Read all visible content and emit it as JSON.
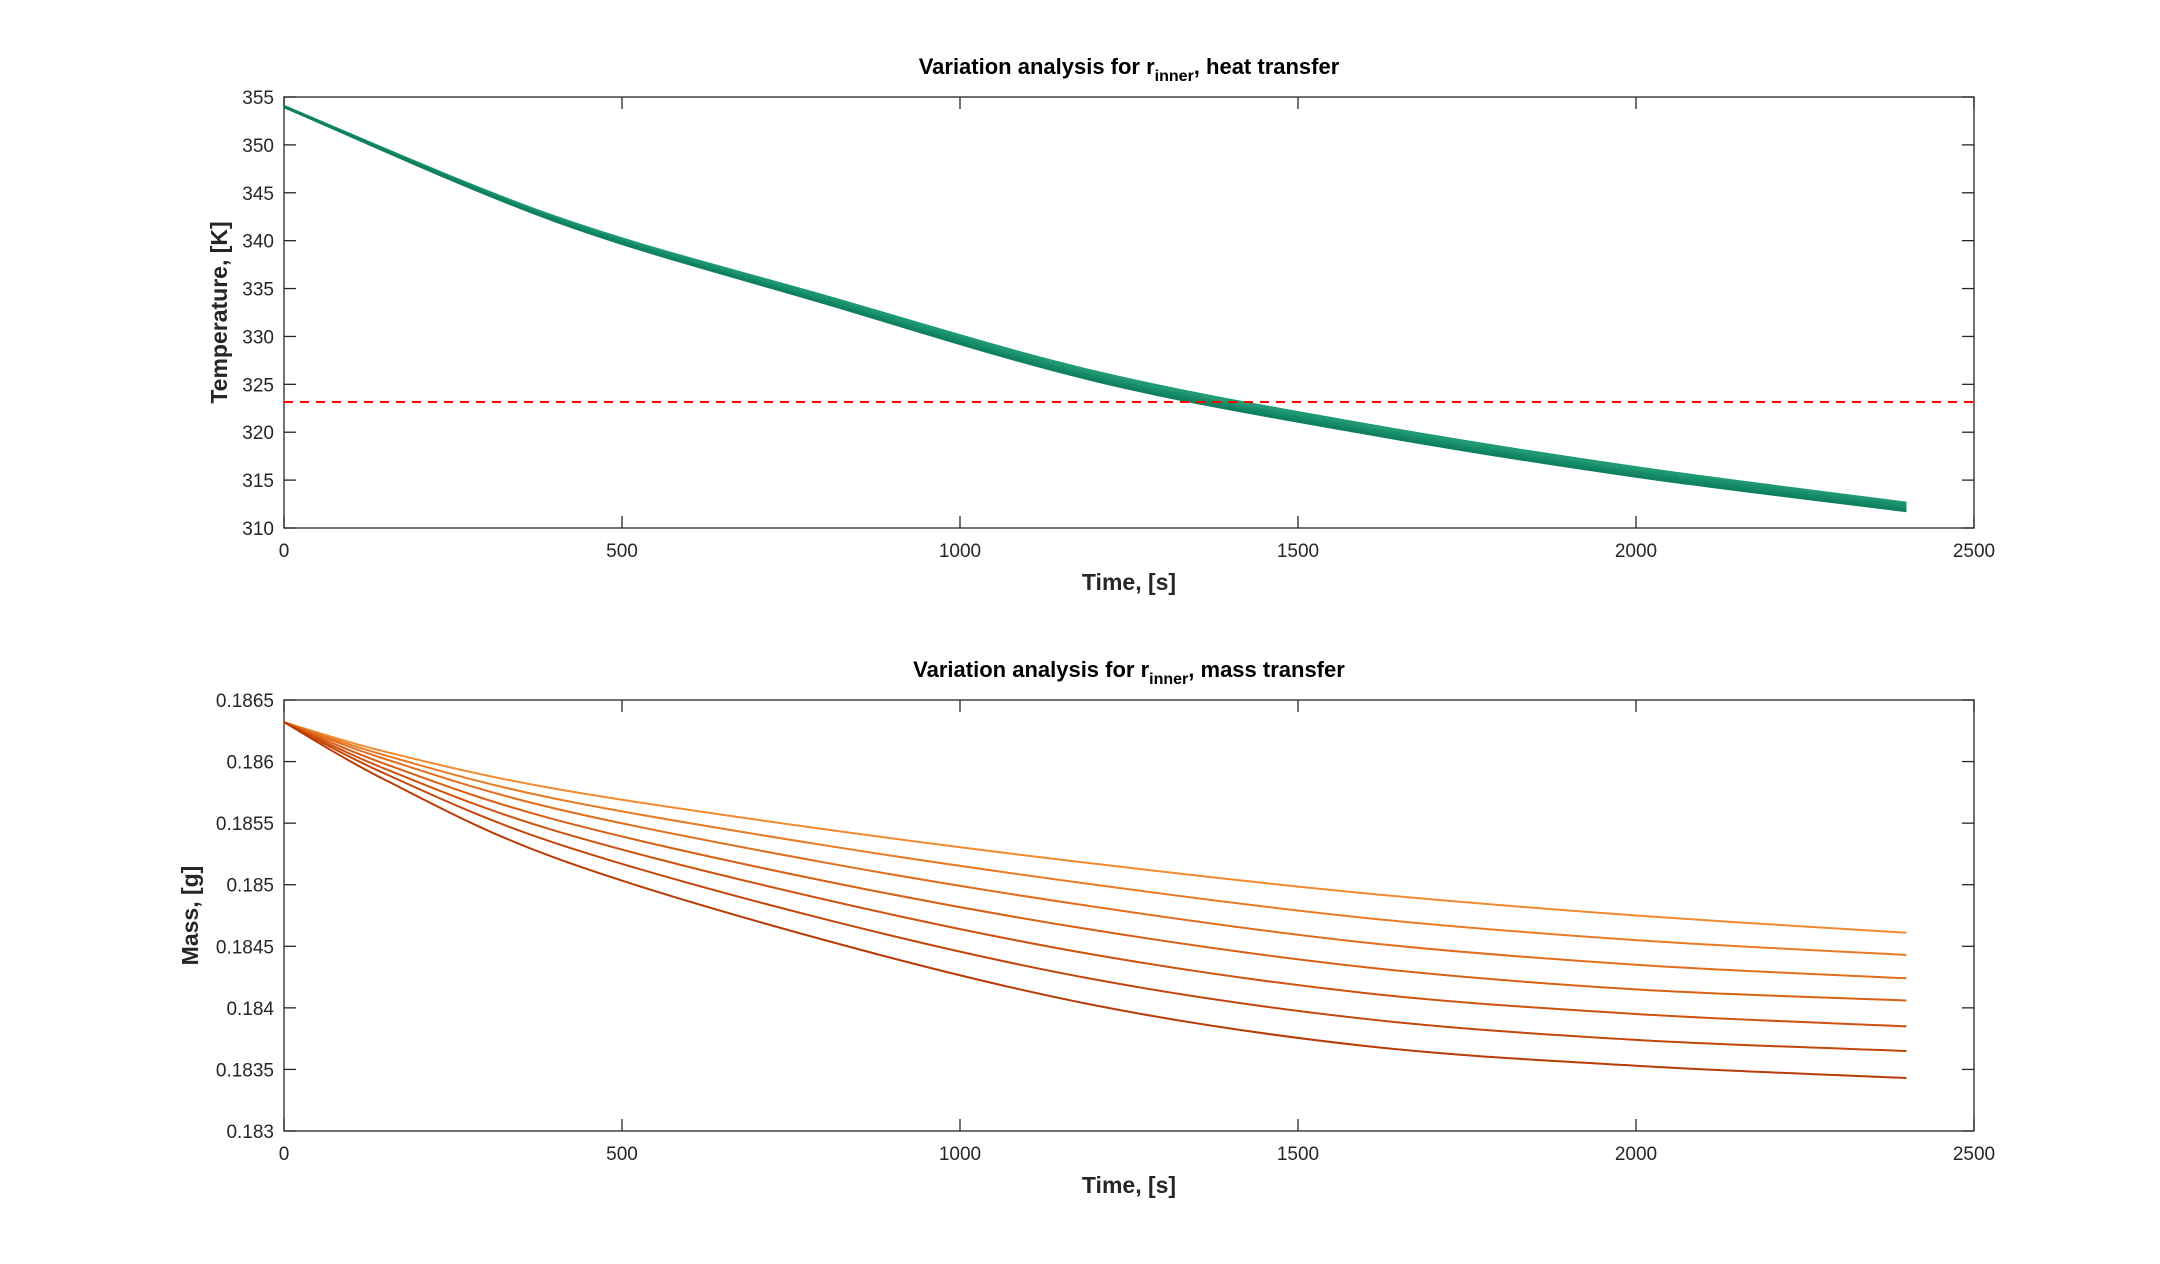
{
  "chart_data": [
    {
      "type": "line",
      "title": {
        "prefix": "Variation analysis for r",
        "subscript": "inner",
        "suffix": ", heat transfer"
      },
      "xlabel": "Time, [s]",
      "ylabel": "Temperature, [K]",
      "xlim": [
        0,
        2500
      ],
      "ylim": [
        310,
        355
      ],
      "xticks": [
        0,
        500,
        1000,
        1500,
        2000,
        2500
      ],
      "yticks": [
        310,
        315,
        320,
        325,
        330,
        335,
        340,
        345,
        350,
        355
      ],
      "xtick_labels": [
        "0",
        "500",
        "1000",
        "1500",
        "2000",
        "2500"
      ],
      "ytick_labels": [
        "310",
        "315",
        "320",
        "325",
        "330",
        "335",
        "340",
        "345",
        "350",
        "355"
      ],
      "grid": false,
      "series": [
        {
          "color": "#1f9a72",
          "x": [
            0,
            400,
            800,
            1200,
            1600,
            2000,
            2400
          ],
          "values": [
            354.0,
            342.5,
            334.2,
            326.3,
            320.8,
            316.3,
            312.6
          ]
        },
        {
          "color": "#1b9470",
          "x": [
            0,
            400,
            800,
            1200,
            1600,
            2000,
            2400
          ],
          "values": [
            354.0,
            342.4,
            334.0,
            326.0,
            320.5,
            316.0,
            312.4
          ]
        },
        {
          "color": "#178d6b",
          "x": [
            0,
            400,
            800,
            1200,
            1600,
            2000,
            2400
          ],
          "values": [
            354.0,
            342.3,
            333.8,
            325.8,
            320.3,
            315.8,
            312.2
          ]
        },
        {
          "color": "#138766",
          "x": [
            0,
            400,
            800,
            1200,
            1600,
            2000,
            2400
          ],
          "values": [
            354.0,
            342.2,
            333.6,
            325.6,
            320.1,
            315.6,
            312.0
          ]
        },
        {
          "color": "#0f8161",
          "x": [
            0,
            400,
            800,
            1200,
            1600,
            2000,
            2400
          ],
          "values": [
            354.0,
            342.1,
            333.5,
            325.4,
            319.9,
            315.4,
            311.8
          ]
        }
      ],
      "reference_line": {
        "y": 323.15,
        "color": "#ff0000",
        "style": "dashed"
      }
    },
    {
      "type": "line",
      "title": {
        "prefix": "Variation analysis for r",
        "subscript": "inner",
        "suffix": ", mass transfer"
      },
      "xlabel": "Time, [s]",
      "ylabel": "Mass, [g]",
      "xlim": [
        0,
        2500
      ],
      "ylim": [
        0.183,
        0.1865
      ],
      "xticks": [
        0,
        500,
        1000,
        1500,
        2000,
        2500
      ],
      "yticks": [
        0.183,
        0.1835,
        0.184,
        0.1845,
        0.185,
        0.1855,
        0.186,
        0.1865
      ],
      "xtick_labels": [
        "0",
        "500",
        "1000",
        "1500",
        "2000",
        "2500"
      ],
      "ytick_labels": [
        "0.183",
        "0.1835",
        "0.184",
        "0.1845",
        "0.185",
        "0.1855",
        "0.186",
        "0.1865"
      ],
      "grid": false,
      "series": [
        {
          "color": "#f28a30",
          "x": [
            0,
            150,
            400,
            800,
            1200,
            1600,
            2000,
            2400
          ],
          "values": [
            0.18632,
            0.18608,
            0.18578,
            0.18545,
            0.18517,
            0.18493,
            0.18475,
            0.18461
          ]
        },
        {
          "color": "#ea7b26",
          "x": [
            0,
            150,
            400,
            800,
            1200,
            1600,
            2000,
            2400
          ],
          "values": [
            0.18632,
            0.18605,
            0.1857,
            0.18532,
            0.185,
            0.18473,
            0.18455,
            0.18443
          ]
        },
        {
          "color": "#e26d1d",
          "x": [
            0,
            150,
            400,
            800,
            1200,
            1600,
            2000,
            2400
          ],
          "values": [
            0.18632,
            0.18602,
            0.18562,
            0.18518,
            0.18482,
            0.18453,
            0.18435,
            0.18424
          ]
        },
        {
          "color": "#d95f15",
          "x": [
            0,
            150,
            400,
            800,
            1200,
            1600,
            2000,
            2400
          ],
          "values": [
            0.18632,
            0.18598,
            0.18553,
            0.18503,
            0.18463,
            0.18433,
            0.18415,
            0.18406
          ]
        },
        {
          "color": "#cf520f",
          "x": [
            0,
            150,
            400,
            800,
            1200,
            1600,
            2000,
            2400
          ],
          "values": [
            0.18632,
            0.18594,
            0.18544,
            0.18488,
            0.18443,
            0.18412,
            0.18395,
            0.18385
          ]
        },
        {
          "color": "#c4460a",
          "x": [
            0,
            150,
            400,
            800,
            1200,
            1600,
            2000,
            2400
          ],
          "values": [
            0.18632,
            0.1859,
            0.18534,
            0.18472,
            0.18423,
            0.18391,
            0.18374,
            0.18365
          ]
        },
        {
          "color": "#b93b07",
          "x": [
            0,
            150,
            400,
            800,
            1200,
            1600,
            2000,
            2400
          ],
          "values": [
            0.18632,
            0.18585,
            0.18522,
            0.18455,
            0.18402,
            0.18369,
            0.18353,
            0.18343
          ]
        }
      ]
    }
  ]
}
